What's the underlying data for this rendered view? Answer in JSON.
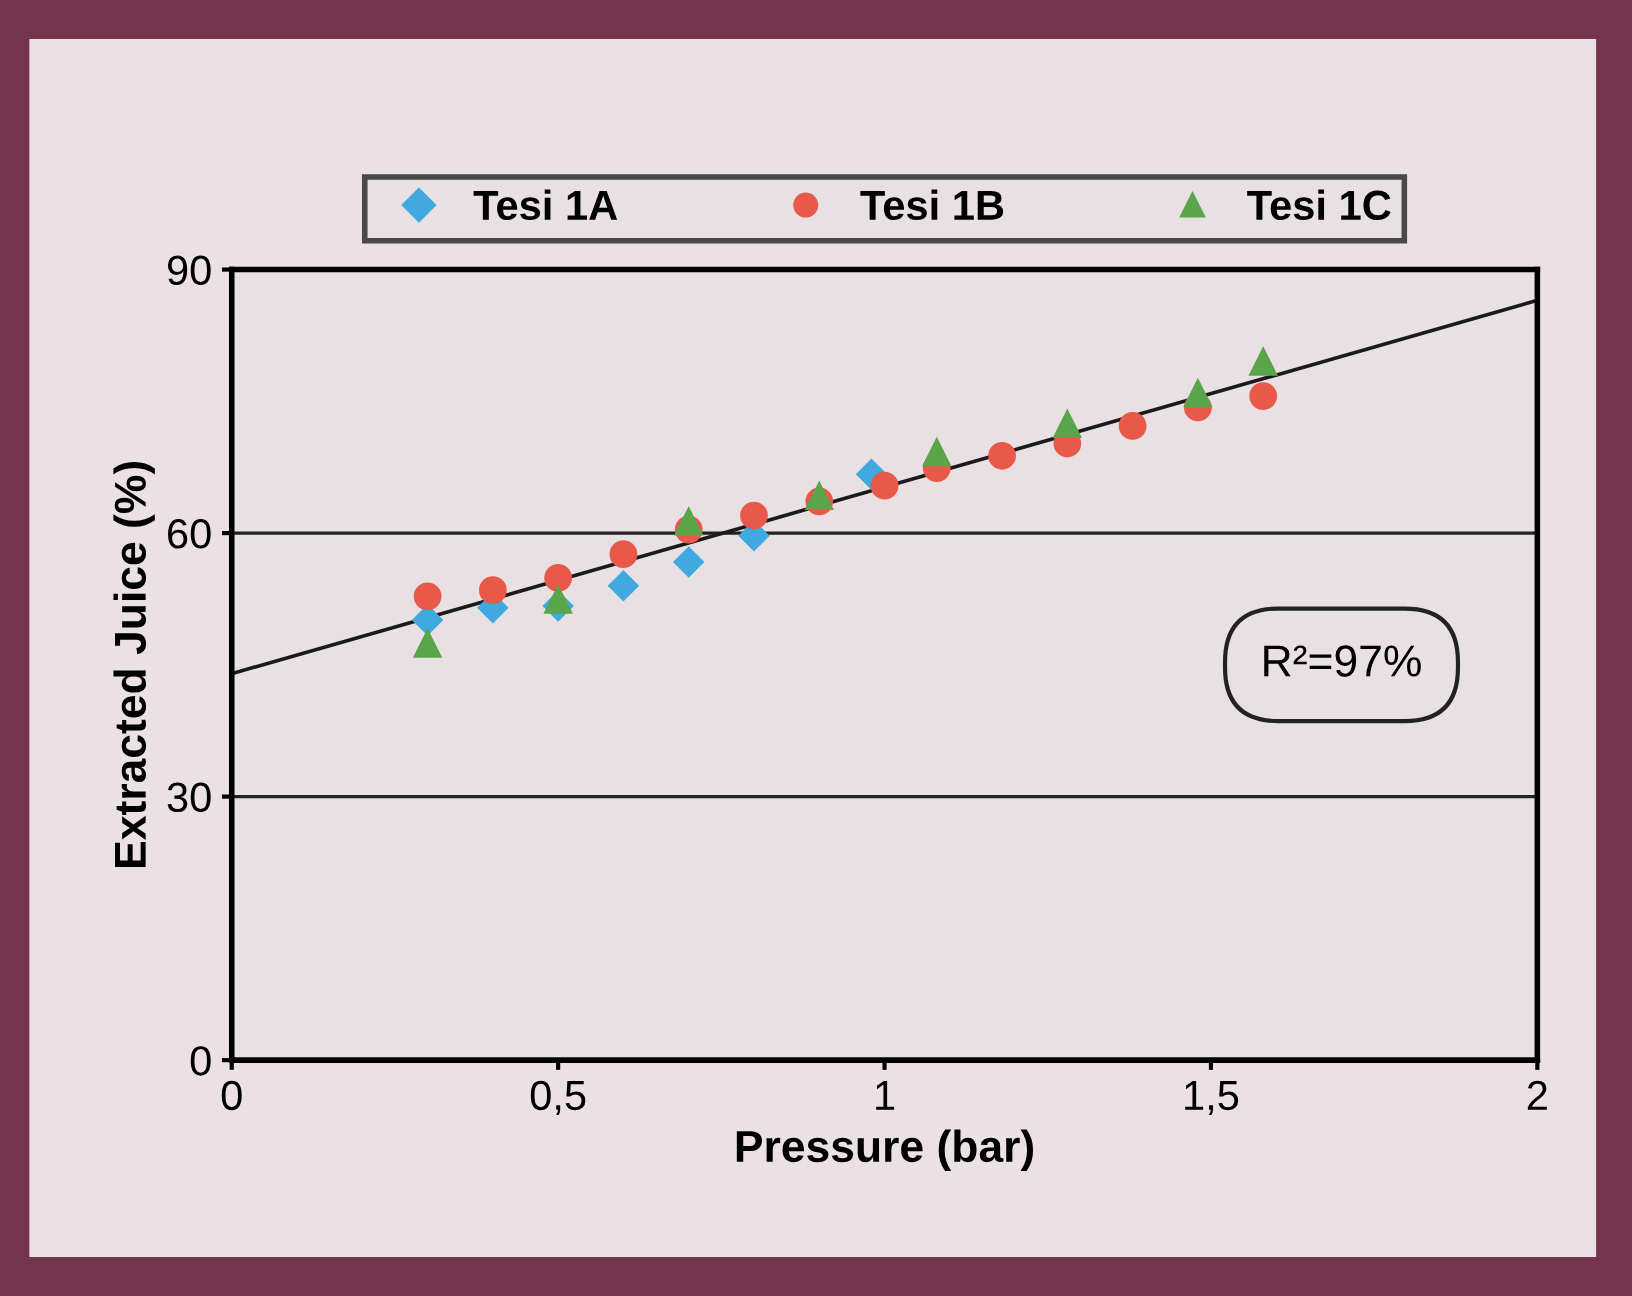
{
  "chart_data": {
    "type": "scatter",
    "xlabel": "Pressure (bar)",
    "ylabel": "Extracted Juice (%)",
    "series": [
      {
        "name": "Tesi 1A",
        "color": "#3fa9e0",
        "marker": "diamond",
        "x": [
          0.3,
          0.4,
          0.5,
          0.6,
          0.7,
          0.8,
          0.98
        ],
        "values": [
          50.1,
          51.5,
          51.7,
          54,
          56.7,
          59.7,
          66.7
        ]
      },
      {
        "name": "Tesi 1B",
        "color": "#e8594a",
        "marker": "circle",
        "x": [
          0.3,
          0.4,
          0.5,
          0.6,
          0.7,
          0.8,
          0.9,
          1.0,
          1.08,
          1.18,
          1.28,
          1.38,
          1.48,
          1.58
        ],
        "values": [
          52.8,
          53.5,
          54.9,
          57.6,
          60.4,
          62,
          63.6,
          65.4,
          67.4,
          68.8,
          70.2,
          72.2,
          74.3,
          75.6
        ]
      },
      {
        "name": "Tesi 1C",
        "color": "#5aa54a",
        "marker": "triangle",
        "x": [
          0.3,
          0.5,
          0.7,
          0.9,
          1.08,
          1.28,
          1.48,
          1.58
        ],
        "values": [
          47.4,
          52.4,
          61.3,
          64.2,
          69.2,
          72.4,
          75.9,
          79.5
        ]
      },
      {
        "type": "line",
        "color": "#1a1a1a",
        "x": [
          0,
          2
        ],
        "values": [
          44,
          86.5
        ]
      }
    ],
    "xlim": [
      0,
      2
    ],
    "xticks": [
      0,
      {
        "value": 0.5,
        "label": "0,5"
      },
      1,
      {
        "value": 1.5,
        "label": "1,5"
      },
      2
    ],
    "ylim": [
      0,
      90
    ],
    "yticks": [
      0,
      30,
      60,
      90
    ],
    "grid": "y",
    "legend": "top",
    "annotations": [
      "R²=97%"
    ]
  }
}
